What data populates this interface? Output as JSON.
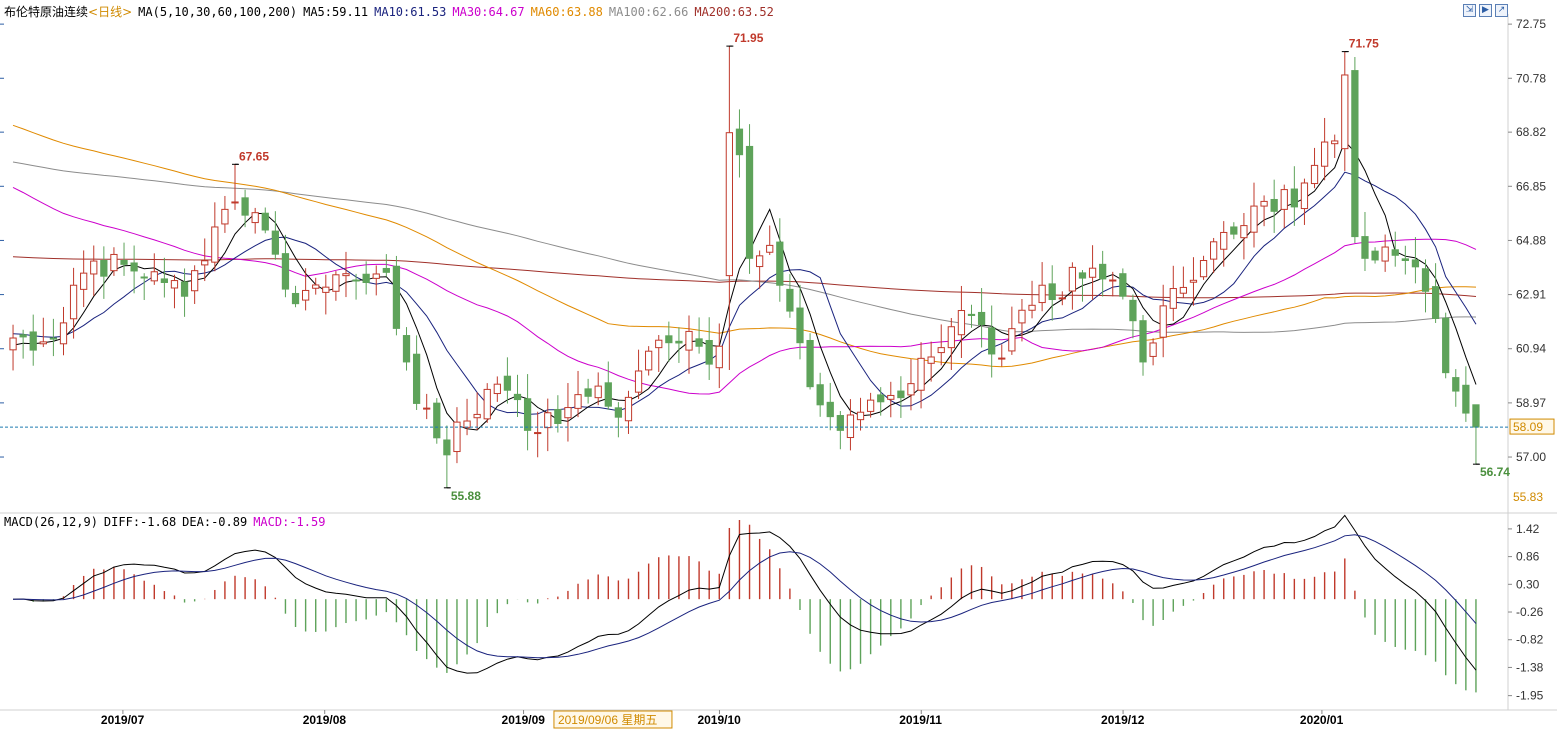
{
  "header": {
    "instrument": "布伦特原油连续",
    "period": "<日线>",
    "ma_label": "MA(5,10,30,60,100,200)",
    "ma5": "MA5:59.11",
    "ma10": "MA10:61.53",
    "ma30": "MA30:64.67",
    "ma60": "MA60:63.88",
    "ma100": "MA100:62.66",
    "ma200": "MA200:63.52"
  },
  "macd_header": {
    "label": "MACD(26,12,9)",
    "diff": "DIFF:-1.68",
    "dea": "DEA:-0.89",
    "macd": "MACD:-1.59"
  },
  "controls": [
    "zoom-icon",
    "play-icon",
    "expand-icon"
  ],
  "colors": {
    "up": "#c0392b",
    "down": "#5ea35a",
    "ma5": "#000000",
    "ma10": "#1a237e",
    "ma30": "#cc00cc",
    "ma60": "#e08a00",
    "ma100": "#8c8c8c",
    "ma200": "#a0302a",
    "last_price_line": "#1f7bb0",
    "price_tag": "#d08a00"
  },
  "chart_data": [
    {
      "type": "candlestick",
      "title": "布伦特原油连续",
      "ylim": [
        55.0,
        72.9
      ],
      "yticks": [
        "72.75",
        "70.78",
        "68.82",
        "66.85",
        "64.88",
        "62.91",
        "60.94",
        "58.97",
        "57.00"
      ],
      "x_labels": [
        "2019/07",
        "2019/08",
        "2019/09",
        "2019/10",
        "2019/11",
        "2019/12",
        "2020/01"
      ],
      "crosshair_label": "2019/09/06 星期五",
      "last_price": "58.09",
      "bottom_price": "55.83",
      "annotations": [
        {
          "label": "67.65",
          "type": "high"
        },
        {
          "label": "55.88",
          "type": "low"
        },
        {
          "label": "71.95",
          "type": "high"
        },
        {
          "label": "71.75",
          "type": "high"
        },
        {
          "label": "56.74",
          "type": "low"
        }
      ]
    },
    {
      "type": "macd",
      "ylim": [
        -2.2,
        1.6
      ],
      "yticks": [
        "1.42",
        "0.86",
        "0.30",
        "-0.26",
        "-0.82",
        "-1.38",
        "-1.95"
      ]
    }
  ]
}
